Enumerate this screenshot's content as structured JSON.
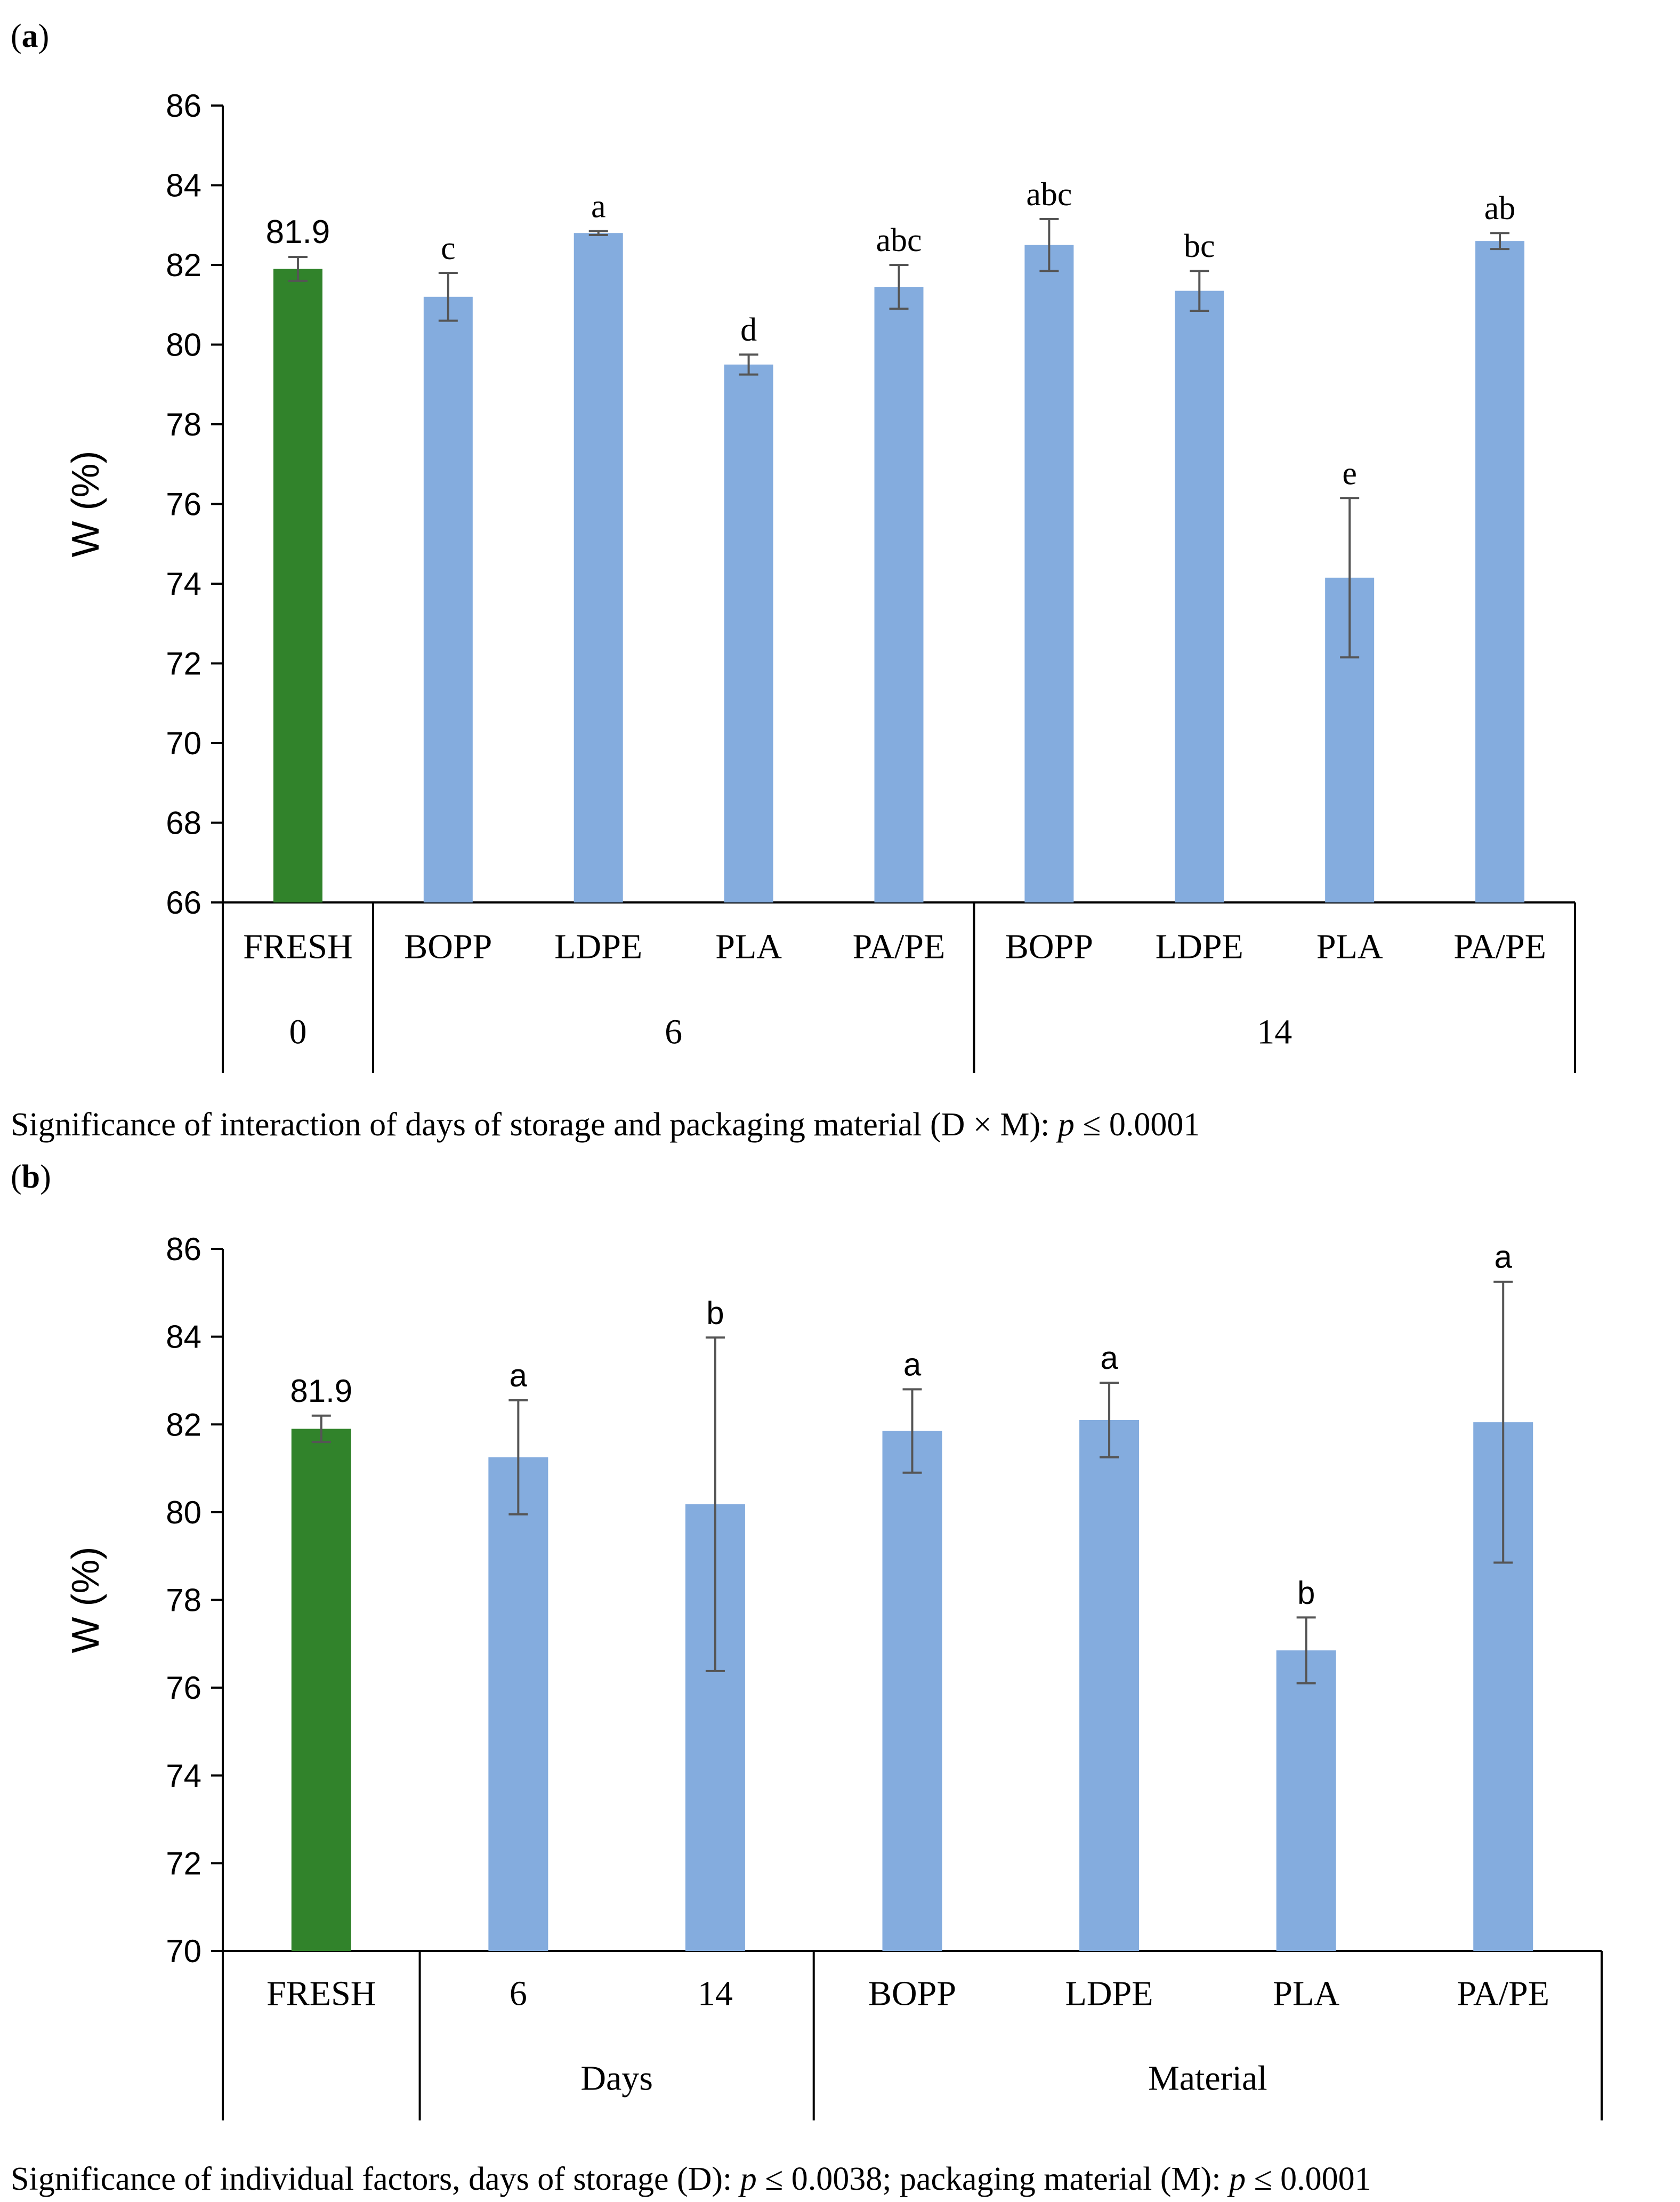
{
  "figure": {
    "panel_a_label": "a",
    "panel_b_label": "b",
    "footnote_a_prefix": "Significance of interaction of days of storage and packaging material (D × M): ",
    "footnote_a_p": "p",
    "footnote_a_value": " ≤ 0.0001",
    "footnote_b_prefix": "Significance of individual factors, days of storage (D): ",
    "footnote_b_p1": "p",
    "footnote_b_mid": " ≤ 0.0038; packaging material (M): ",
    "footnote_b_p2": "p",
    "footnote_b_value": " ≤ 0.0001"
  },
  "chart_data": [
    {
      "type": "bar",
      "panel": "a",
      "ylabel": "W (%)",
      "ylim": [
        66,
        86
      ],
      "yticks": [
        66,
        68,
        70,
        72,
        74,
        76,
        78,
        80,
        82,
        84,
        86
      ],
      "categories": [
        "FRESH",
        "BOPP",
        "LDPE",
        "PLA",
        "PA/PE",
        "BOPP",
        "LDPE",
        "PLA",
        "PA/PE"
      ],
      "values": [
        81.9,
        81.2,
        82.8,
        79.5,
        81.45,
        82.5,
        81.35,
        74.15,
        82.6
      ],
      "errors": [
        0.3,
        0.6,
        0.05,
        0.25,
        0.55,
        0.65,
        0.5,
        2.0,
        0.2
      ],
      "labels": [
        "81.9",
        "c",
        "a",
        "d",
        "abc",
        "abc",
        "bc",
        "e",
        "ab"
      ],
      "colors": [
        "#31832b",
        "#84acde",
        "#84acde",
        "#84acde",
        "#84acde",
        "#84acde",
        "#84acde",
        "#84acde",
        "#84acde"
      ],
      "groups": [
        {
          "label": "0",
          "count": 1
        },
        {
          "label": "6",
          "count": 4
        },
        {
          "label": "14",
          "count": 4
        }
      ]
    },
    {
      "type": "bar",
      "panel": "b",
      "ylabel": "W (%)",
      "ylim": [
        70,
        86
      ],
      "yticks": [
        70,
        72,
        74,
        76,
        78,
        80,
        82,
        84,
        86
      ],
      "categories": [
        "FRESH",
        "6",
        "14",
        "BOPP",
        "LDPE",
        "PLA",
        "PA/PE"
      ],
      "values": [
        81.9,
        81.25,
        80.18,
        81.85,
        82.1,
        76.85,
        82.05
      ],
      "errors": [
        0.3,
        1.3,
        3.8,
        0.95,
        0.85,
        0.75,
        3.2
      ],
      "labels": [
        "81.9",
        "a",
        "b",
        "a",
        "a",
        "b",
        "a"
      ],
      "colors": [
        "#31832b",
        "#84acde",
        "#84acde",
        "#84acde",
        "#84acde",
        "#84acde",
        "#84acde"
      ],
      "groups": [
        {
          "label": "",
          "count": 1
        },
        {
          "label": "Days",
          "count": 2
        },
        {
          "label": "Material",
          "count": 4
        }
      ]
    }
  ]
}
